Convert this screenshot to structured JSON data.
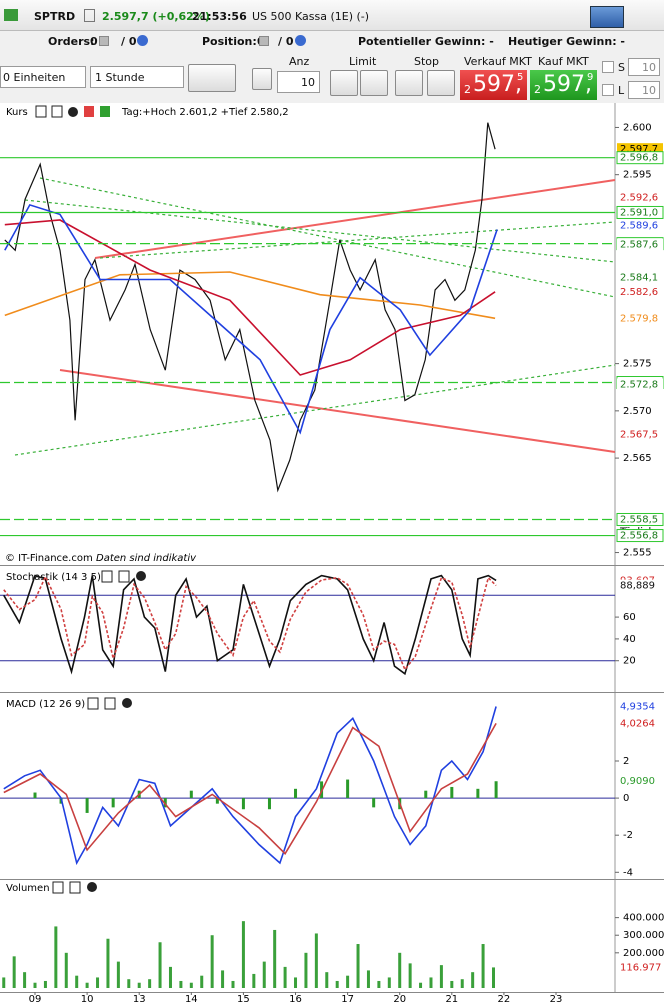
{
  "header": {
    "symbol": "SPTRD",
    "price": "2.597,7 (+0,62%)",
    "time": "21:53:56",
    "instrument": "US 500 Kassa (1E) (-)"
  },
  "toolbar": {
    "orders_label": "Orders:",
    "orders_value": "0",
    "orders_total": "/ 0",
    "position_label": "Position:",
    "position_value": "0",
    "position_total": "/ 0",
    "potential": "Potentieller Gewinn: -",
    "today": "Heutiger Gewinn: -",
    "units": "0 Einheiten",
    "interval": "1 Stunde",
    "anz": "Anz",
    "quantity": "10",
    "limit": "Limit",
    "stop": "Stop",
    "sell_label": "Verkauf MKT",
    "sell": [
      "2",
      "597,",
      "5"
    ],
    "buy_label": "Kauf MKT",
    "buy": [
      "2",
      "597,",
      "9"
    ],
    "s": "S",
    "s_qty": "10",
    "l": "L",
    "l_qty": "10"
  },
  "chart_data": [
    {
      "type": "line",
      "title": "Kurs",
      "subtitle": "Tag:+Hoch 2.601,2 +Tief 2.580,2",
      "annotations": [
        "© IT-Finance.com",
        "Daten sind indikativ"
      ],
      "xlim": [
        -0.672,
        11.132
      ],
      "ylim": [
        2554,
        2601
      ],
      "yticks": [
        {
          "value": 2600,
          "label": "2.600"
        },
        {
          "value": 2595,
          "label": "2.595"
        },
        {
          "value": 2575,
          "label": "2.575"
        },
        {
          "value": 2570,
          "label": "2.570"
        },
        {
          "value": 2565,
          "label": "2.565"
        },
        {
          "value": 2555,
          "label": "2.555"
        }
      ],
      "series": [
        {
          "color": "#111111",
          "x": [
            -0.58,
            -0.38,
            -0.19,
            0.1,
            0.29,
            0.48,
            0.67,
            0.77,
            0.96,
            1.15,
            1.44,
            1.73,
            1.92,
            2.21,
            2.5,
            2.78,
            3.07,
            3.36,
            3.65,
            3.93,
            4.22,
            4.51,
            4.66,
            4.89,
            5.09,
            5.37,
            5.66,
            5.85,
            6.05,
            6.24,
            6.53,
            6.72,
            6.91,
            7.1,
            7.29,
            7.49,
            7.68,
            7.87,
            8.06,
            8.25,
            8.45,
            8.58,
            8.69,
            8.83
          ],
          "values": [
            2588.1,
            2587.0,
            2592.4,
            2596.1,
            2590.8,
            2587.0,
            2579.6,
            2569.0,
            2583.9,
            2586.0,
            2579.6,
            2582.8,
            2585.5,
            2578.6,
            2574.3,
            2584.9,
            2583.9,
            2581.7,
            2575.4,
            2578.6,
            2571.1,
            2566.9,
            2561.6,
            2564.8,
            2569.0,
            2572.2,
            2581.7,
            2588.1,
            2584.9,
            2582.8,
            2586.0,
            2580.7,
            2578.6,
            2571.1,
            2571.7,
            2575.4,
            2582.8,
            2583.9,
            2581.7,
            2582.8,
            2587.0,
            2592.4,
            2600.5,
            2597.7
          ]
        },
        {
          "color": "#f08c1c",
          "x": [
            -0.58,
            1.63,
            3.74,
            5.47,
            7.39,
            8.83
          ],
          "values": [
            2580.1,
            2584.4,
            2584.7,
            2582.3,
            2581.2,
            2579.8
          ]
        },
        {
          "color": "#c8102e",
          "x": [
            -0.58,
            0.48,
            2.21,
            3.74,
            5.09,
            6.05,
            7.01,
            8.16,
            8.83
          ],
          "values": [
            2589.7,
            2590.2,
            2584.9,
            2581.7,
            2573.8,
            2575.4,
            2578.6,
            2580.1,
            2582.6
          ]
        },
        {
          "color": "#2040e0",
          "x": [
            -0.58,
            -0.1,
            0.48,
            1.25,
            2.59,
            4.32,
            5.09,
            5.66,
            6.24,
            7.01,
            7.58,
            8.35,
            8.87
          ],
          "values": [
            2587.0,
            2591.8,
            2590.8,
            2583.9,
            2583.9,
            2575.4,
            2567.7,
            2578.6,
            2584.1,
            2580.7,
            2575.9,
            2580.7,
            2589.2
          ]
        }
      ],
      "axis_labels": [
        {
          "value": 2597.7,
          "label": "2.597,7",
          "color": "#000000",
          "bg": "#f5c400"
        },
        {
          "value": 2596.8,
          "label": "2.596,8",
          "color": "#1a7a1a",
          "line": "solid"
        },
        {
          "value": 2592.6,
          "label": "2.592,6",
          "color": "#d02020"
        },
        {
          "value": 2591.0,
          "label": "2.591,0",
          "color": "#1a7a1a",
          "line": "solid",
          "note": "Täglich"
        },
        {
          "value": 2589.6,
          "label": "2.589,6",
          "color": "#2040e0"
        },
        {
          "value": 2587.7,
          "label": "2.587,7",
          "color": "#1a7a1a",
          "line": "dashed"
        },
        {
          "value": 2587.6,
          "label": "2.587,6",
          "color": "#1a7a1a"
        },
        {
          "value": 2584.1,
          "label": "2.584,1",
          "color": "#1a7a1a"
        },
        {
          "value": 2582.6,
          "label": "2.582,6",
          "color": "#d02020"
        },
        {
          "value": 2579.8,
          "label": "2.579,8",
          "color": "#f08c1c"
        },
        {
          "value": 2573.0,
          "label": "2.573,0",
          "color": "#1a7a1a",
          "line": "dashed"
        },
        {
          "value": 2572.8,
          "label": "2.572,8",
          "color": "#1a7a1a"
        },
        {
          "value": 2567.5,
          "label": "2.567,5",
          "color": "#d02020"
        },
        {
          "value": 2558.5,
          "label": "2.558,5",
          "color": "#1a7a1a",
          "line": "dashed",
          "note": "Täglich"
        },
        {
          "value": 2556.8,
          "label": "2.556,8",
          "color": "#1a7a1a",
          "line": "solid"
        }
      ]
    },
    {
      "type": "line",
      "title": "Stochastik (14 3 5)",
      "xlim": [
        -0.672,
        11.132
      ],
      "ylim": [
        -5,
        105
      ],
      "yticks": [
        20,
        40,
        60
      ],
      "reference_lines": [
        20,
        80
      ],
      "series": [
        {
          "color": "#111111",
          "x": [
            -0.6,
            -0.3,
            0,
            0.2,
            0.5,
            0.7,
            0.95,
            1.1,
            1.3,
            1.5,
            1.7,
            1.9,
            2.1,
            2.3,
            2.5,
            2.7,
            2.9,
            3.1,
            3.3,
            3.5,
            3.8,
            4.0,
            4.2,
            4.5,
            4.7,
            4.9,
            5.2,
            5.5,
            5.8,
            6.0,
            6.3,
            6.5,
            6.7,
            6.9,
            7.1,
            7.3,
            7.6,
            7.8,
            8.0,
            8.2,
            8.35,
            8.5,
            8.7,
            8.85
          ],
          "values": [
            80,
            55,
            98,
            95,
            40,
            10,
            60,
            98,
            30,
            15,
            85,
            95,
            60,
            50,
            10,
            80,
            95,
            60,
            70,
            20,
            30,
            90,
            60,
            15,
            40,
            75,
            90,
            98,
            95,
            85,
            40,
            20,
            55,
            15,
            8,
            40,
            95,
            98,
            85,
            40,
            25,
            95,
            98,
            93.607
          ]
        },
        {
          "color": "#d04040",
          "dashed": true,
          "x": [
            -0.6,
            -0.3,
            0,
            0.2,
            0.5,
            0.7,
            0.95,
            1.1,
            1.3,
            1.5,
            1.7,
            1.9,
            2.1,
            2.3,
            2.5,
            2.7,
            2.9,
            3.1,
            3.3,
            3.5,
            3.8,
            4.0,
            4.2,
            4.5,
            4.7,
            4.9,
            5.2,
            5.5,
            5.8,
            6.0,
            6.3,
            6.5,
            6.7,
            6.9,
            7.1,
            7.3,
            7.6,
            7.8,
            8.0,
            8.2,
            8.35,
            8.5,
            8.7,
            8.85
          ],
          "values": [
            85,
            67,
            76,
            97,
            67,
            25,
            35,
            79,
            64,
            22,
            50,
            90,
            78,
            55,
            30,
            45,
            88,
            78,
            65,
            45,
            25,
            60,
            75,
            38,
            28,
            58,
            83,
            94,
            96,
            90,
            62,
            30,
            38,
            35,
            12,
            24,
            68,
            96,
            92,
            62,
            32,
            60,
            96,
            88.889
          ]
        }
      ],
      "axis_labels": [
        {
          "value": 93.607,
          "label": "93,607",
          "color": "#d02020"
        },
        {
          "value": 88.889,
          "label": "88,889",
          "color": "#111111"
        }
      ]
    },
    {
      "type": "line",
      "title": "MACD (12 26 9)",
      "xlim": [
        -0.672,
        11.132
      ],
      "ylim": [
        -4.2,
        5.45
      ],
      "yticks": [
        -4,
        -2,
        0,
        2
      ],
      "reference_lines": [
        0
      ],
      "series": [
        {
          "color": "#2a9a2a",
          "style": "bar",
          "x": [
            0,
            0.5,
            1,
            1.5,
            2,
            2.5,
            3,
            3.5,
            4,
            4.5,
            5,
            5.5,
            6,
            6.5,
            7,
            7.5,
            8,
            8.5,
            8.85
          ],
          "values": [
            0.3,
            -0.3,
            -0.8,
            -0.5,
            0.4,
            -0.5,
            0.4,
            -0.3,
            -0.6,
            -0.6,
            0.5,
            0.9,
            1.0,
            -0.5,
            -0.6,
            0.4,
            0.6,
            0.5,
            0.909
          ]
        },
        {
          "color": "#2040e0",
          "x": [
            -0.6,
            -0.2,
            0.1,
            0.5,
            0.8,
            1.0,
            1.3,
            1.6,
            2.0,
            2.3,
            2.6,
            3.0,
            3.4,
            3.8,
            4.3,
            4.7,
            5.0,
            5.4,
            5.8,
            6.1,
            6.5,
            6.9,
            7.2,
            7.5,
            7.8,
            8.0,
            8.3,
            8.6,
            8.85
          ],
          "values": [
            0.5,
            1.2,
            1.5,
            0,
            -3.5,
            -2.5,
            -0.5,
            -1.5,
            1.0,
            0.8,
            -1.5,
            -0.5,
            0.5,
            -1.0,
            -2.5,
            -3.5,
            -1.0,
            0.5,
            3.5,
            4.3,
            2.0,
            -1.0,
            -2.5,
            -1.5,
            1.5,
            2.0,
            1.0,
            2.5,
            4.9354
          ]
        },
        {
          "color": "#c84040",
          "x": [
            -0.6,
            0.1,
            0.6,
            1.0,
            1.6,
            2.2,
            2.7,
            3.4,
            4.3,
            4.8,
            5.4,
            6.1,
            6.6,
            7.2,
            7.8,
            8.3,
            8.85
          ],
          "values": [
            0.3,
            1.3,
            0.2,
            -2.8,
            -0.8,
            0.7,
            -1.0,
            0.2,
            -1.6,
            -3.0,
            -0.2,
            3.8,
            2.8,
            -1.8,
            0.5,
            1.3,
            4.0264
          ]
        }
      ],
      "axis_labels": [
        {
          "value": 4.9354,
          "label": "4,9354",
          "color": "#2040e0"
        },
        {
          "value": 4.0264,
          "label": "4,0264",
          "color": "#d02020"
        },
        {
          "value": 0.909,
          "label": "0,9090",
          "color": "#2a9a2a"
        }
      ]
    },
    {
      "type": "bar",
      "title": "Volumen",
      "xlim": [
        -0.672,
        11.132
      ],
      "ylim": [
        0,
        540000
      ],
      "xticks": [
        {
          "value": 0,
          "label": "09"
        },
        {
          "value": 1,
          "label": "10"
        },
        {
          "value": 2,
          "label": "13"
        },
        {
          "value": 3,
          "label": "14"
        },
        {
          "value": 4,
          "label": "15"
        },
        {
          "value": 5,
          "label": "16"
        },
        {
          "value": 6,
          "label": "17"
        },
        {
          "value": 7,
          "label": "20"
        },
        {
          "value": 8,
          "label": "21"
        },
        {
          "value": 9,
          "label": "22"
        },
        {
          "value": 10,
          "label": "23"
        }
      ],
      "yticks": [
        {
          "value": 200000,
          "label": "200.000"
        },
        {
          "value": 300000,
          "label": "300.000"
        },
        {
          "value": 400000,
          "label": "400.000"
        }
      ],
      "series": [
        {
          "color": "#3aa03a",
          "x": [
            -0.6,
            -0.4,
            -0.2,
            0,
            0.2,
            0.4,
            0.6,
            0.8,
            1.0,
            1.2,
            1.4,
            1.6,
            1.8,
            2.0,
            2.2,
            2.4,
            2.6,
            2.8,
            3.0,
            3.2,
            3.4,
            3.6,
            3.8,
            4.0,
            4.2,
            4.4,
            4.6,
            4.8,
            5.0,
            5.2,
            5.4,
            5.6,
            5.8,
            6.0,
            6.2,
            6.4,
            6.6,
            6.8,
            7.0,
            7.2,
            7.4,
            7.6,
            7.8,
            8.0,
            8.2,
            8.4,
            8.6,
            8.8
          ],
          "values": [
            60000,
            180000,
            90000,
            30000,
            40000,
            350000,
            200000,
            70000,
            30000,
            60000,
            280000,
            150000,
            50000,
            30000,
            50000,
            260000,
            120000,
            40000,
            30000,
            70000,
            300000,
            100000,
            40000,
            380000,
            80000,
            150000,
            330000,
            120000,
            60000,
            200000,
            310000,
            90000,
            40000,
            70000,
            250000,
            100000,
            40000,
            60000,
            200000,
            140000,
            30000,
            60000,
            130000,
            40000,
            50000,
            90000,
            250000,
            116977
          ]
        }
      ],
      "axis_labels": [
        {
          "value": 116977,
          "label": "116.977",
          "color": "#d02020"
        }
      ]
    }
  ]
}
